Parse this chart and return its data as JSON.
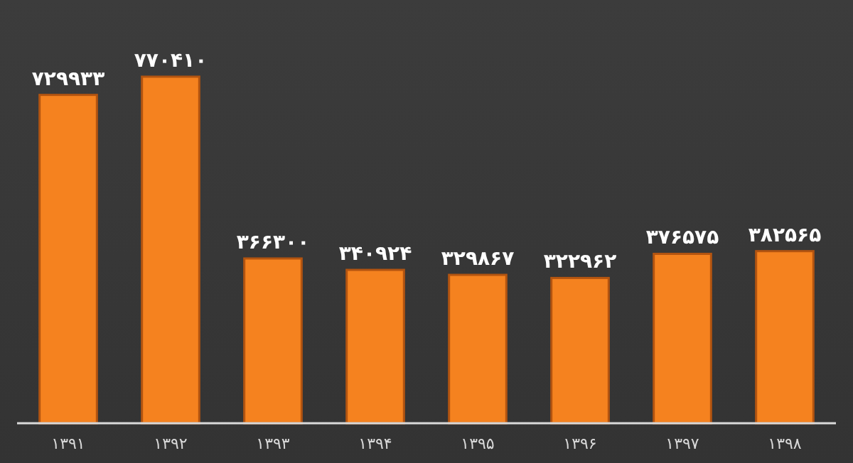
{
  "chart_data": {
    "type": "bar",
    "categories": [
      "۱۳۹۱",
      "۱۳۹۲",
      "۱۳۹۳",
      "۱۳۹۴",
      "۱۳۹۵",
      "۱۳۹۶",
      "۱۳۹۷",
      "۱۳۹۸"
    ],
    "values": [
      729933,
      770410,
      366300,
      340924,
      329867,
      322962,
      376575,
      382565
    ],
    "value_labels": [
      "۷۲۹۹۳۳",
      "۷۷۰۴۱۰",
      "۳۶۶۳۰۰",
      "۳۴۰۹۲۴",
      "۳۲۹۸۶۷",
      "۳۲۲۹۶۲",
      "۳۷۶۵۷۵",
      "۳۸۲۵۶۵"
    ],
    "color": "#f5821f"
  }
}
